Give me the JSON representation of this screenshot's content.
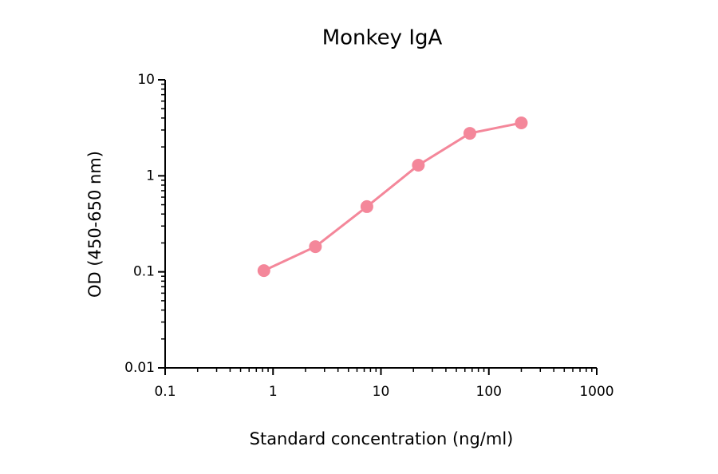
{
  "chart_data": {
    "type": "line",
    "title": "Monkey IgA",
    "x_label": "Standard concentration (ng/ml)",
    "y_label": "OD (450-650 nm)",
    "x": [
      0.823,
      2.47,
      7.41,
      22.22,
      66.67,
      200
    ],
    "series": [
      {
        "name": "Monkey IgA",
        "color": "#f4879a",
        "values": [
          0.103,
          0.183,
          0.478,
          1.29,
          2.77,
          3.56
        ]
      }
    ],
    "xlim": [
      0.1,
      1000
    ],
    "ylim": [
      0.01,
      10
    ],
    "xticks": [
      0.1,
      1,
      10,
      100,
      1000
    ],
    "yticks": [
      0.01,
      0.1,
      1,
      10
    ],
    "xscale": "log",
    "yscale": "log"
  }
}
